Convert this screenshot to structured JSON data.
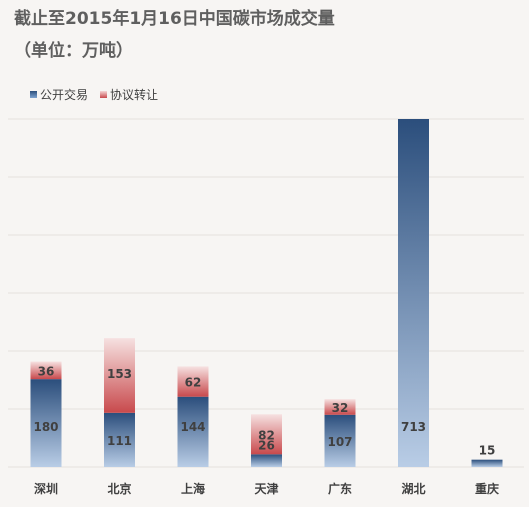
{
  "chart_data": {
    "type": "bar",
    "stacked": true,
    "title": "截止至2015年1月16日中国碳市场成交量",
    "subtitle": "（单位：万吨）",
    "categories": [
      "深圳",
      "北京",
      "上海",
      "天津",
      "广东",
      "湖北",
      "重庆"
    ],
    "series": [
      {
        "name": "公开交易",
        "values": [
          180,
          111,
          144,
          26,
          107,
          713,
          15
        ]
      },
      {
        "name": "协议转让",
        "values": [
          36,
          153,
          62,
          82,
          32,
          0,
          0
        ]
      }
    ],
    "ylim": [
      0,
      713
    ],
    "grid": true,
    "legend_position": "top-left",
    "colors": {
      "public_top": "#2b4e7c",
      "public_bottom": "#b9cde6",
      "agreement_top": "#f6e1e1",
      "agreement_bottom": "#c8494c",
      "gridline": "#e4e1de",
      "text": "#404040"
    }
  }
}
